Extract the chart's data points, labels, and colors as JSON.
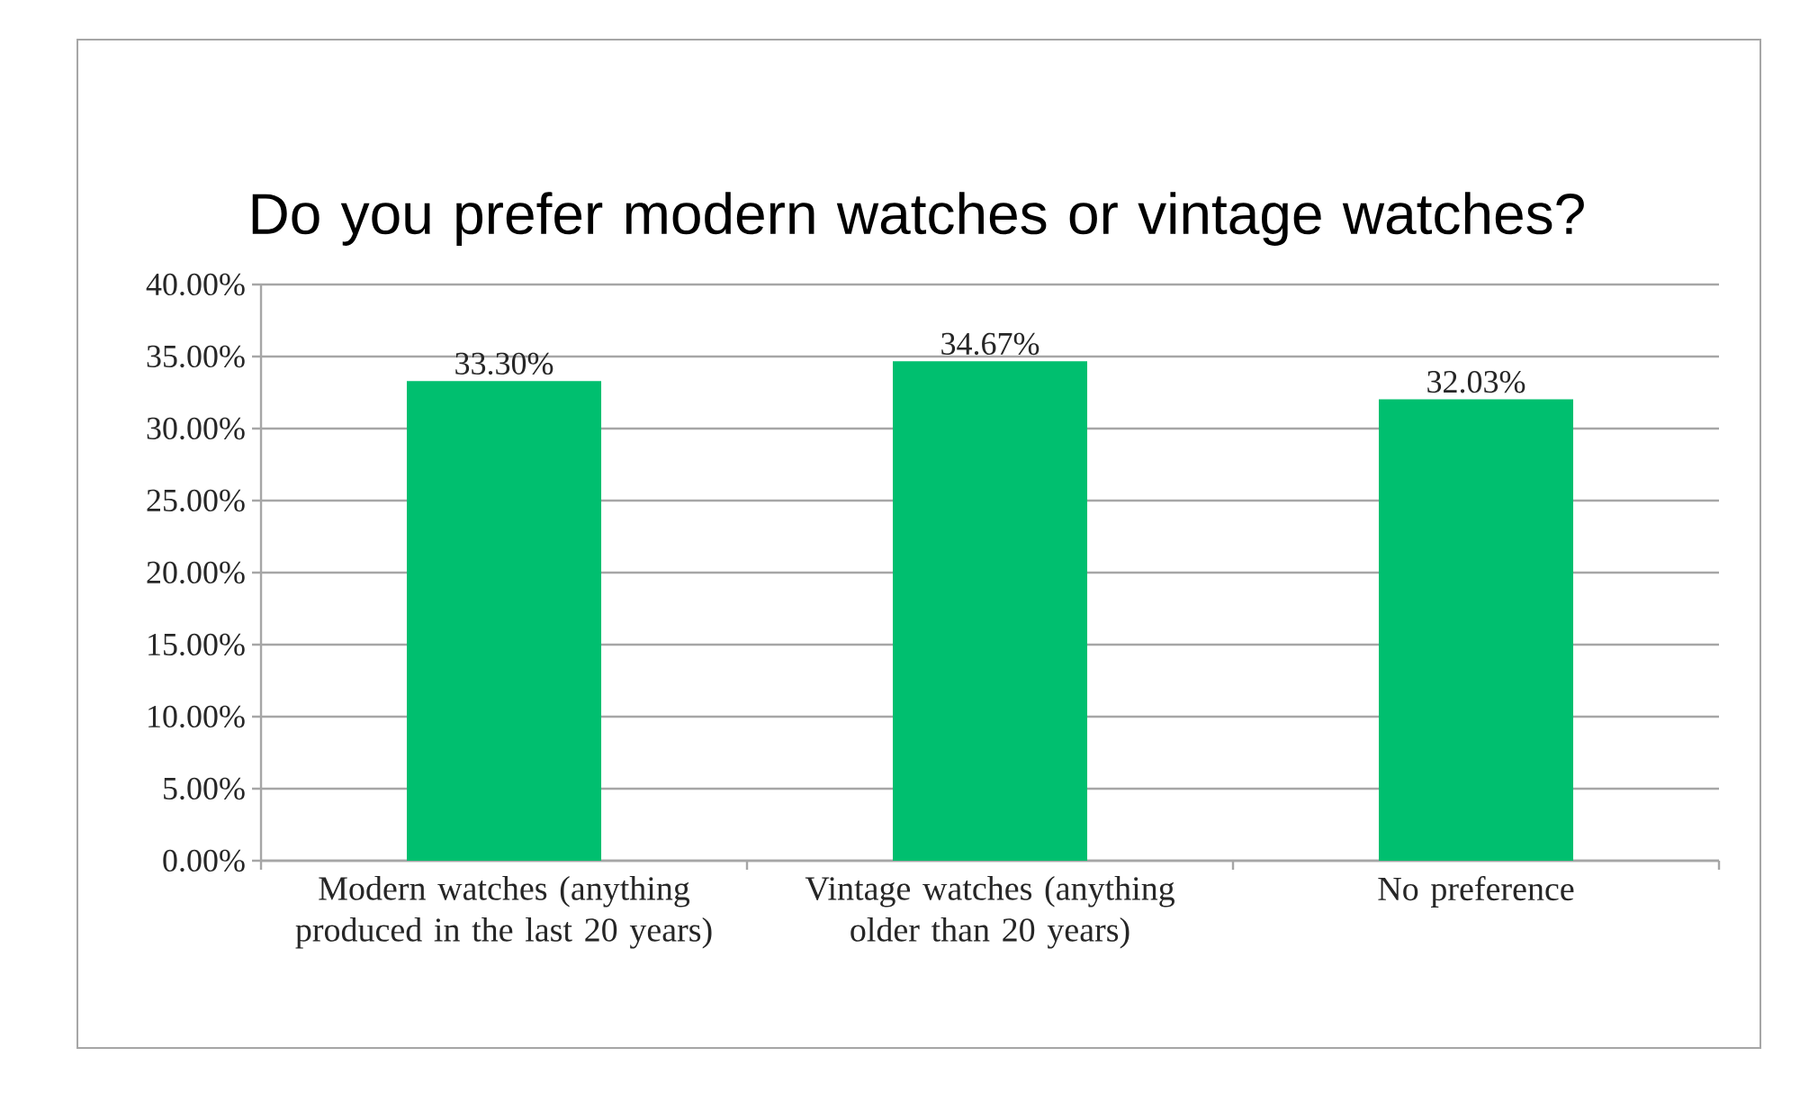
{
  "chart_data": {
    "type": "bar",
    "title": "Do you prefer modern watches or vintage watches?",
    "categories": [
      "Modern watches (anything produced in the last 20 years)",
      "Vintage watches (anything older than 20 years)",
      "No preference"
    ],
    "values": [
      33.3,
      34.67,
      32.03
    ],
    "value_labels": [
      "33.30%",
      "34.67%",
      "32.03%"
    ],
    "color": "#00bf6f",
    "ylim": [
      0,
      40
    ],
    "yticks": [
      {
        "value": 0,
        "label": "0.00%"
      },
      {
        "value": 5,
        "label": "5.00%"
      },
      {
        "value": 10,
        "label": "10.00%"
      },
      {
        "value": 15,
        "label": "15.00%"
      },
      {
        "value": 20,
        "label": "20.00%"
      },
      {
        "value": 25,
        "label": "25.00%"
      },
      {
        "value": 30,
        "label": "30.00%"
      },
      {
        "value": 35,
        "label": "35.00%"
      },
      {
        "value": 40,
        "label": "40.00%"
      }
    ],
    "grid": "y"
  }
}
